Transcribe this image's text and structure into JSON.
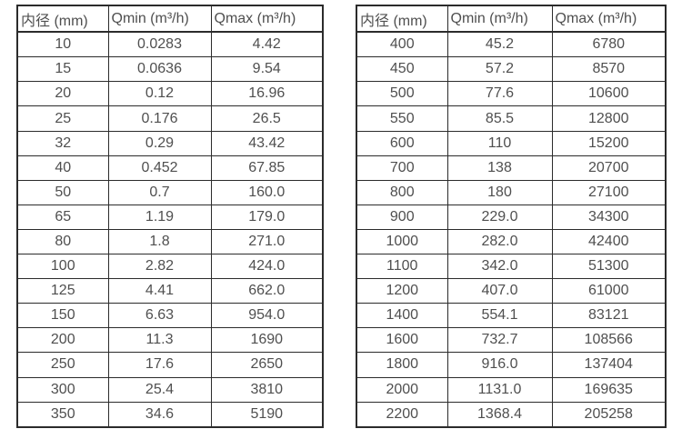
{
  "tables": [
    {
      "id": "flow-table-small-diameters",
      "headers": [
        "内径 (mm)",
        "Qmin (m³/h)",
        "Qmax (m³/h)"
      ],
      "rows": [
        [
          "10",
          "0.0283",
          "4.42"
        ],
        [
          "15",
          "0.0636",
          "9.54"
        ],
        [
          "20",
          "0.12",
          "16.96"
        ],
        [
          "25",
          "0.176",
          "26.5"
        ],
        [
          "32",
          "0.29",
          "43.42"
        ],
        [
          "40",
          "0.452",
          "67.85"
        ],
        [
          "50",
          "0.7",
          "160.0"
        ],
        [
          "65",
          "1.19",
          "179.0"
        ],
        [
          "80",
          "1.8",
          "271.0"
        ],
        [
          "100",
          "2.82",
          "424.0"
        ],
        [
          "125",
          "4.41",
          "662.0"
        ],
        [
          "150",
          "6.63",
          "954.0"
        ],
        [
          "200",
          "11.3",
          "1690"
        ],
        [
          "250",
          "17.6",
          "2650"
        ],
        [
          "300",
          "25.4",
          "3810"
        ],
        [
          "350",
          "34.6",
          "5190"
        ]
      ]
    },
    {
      "id": "flow-table-large-diameters",
      "headers": [
        "内径 (mm)",
        "Qmin (m³/h)",
        "Qmax (m³/h)"
      ],
      "rows": [
        [
          "400",
          "45.2",
          "6780"
        ],
        [
          "450",
          "57.2",
          "8570"
        ],
        [
          "500",
          "77.6",
          "10600"
        ],
        [
          "550",
          "85.5",
          "12800"
        ],
        [
          "600",
          "110",
          "15200"
        ],
        [
          "700",
          "138",
          "20700"
        ],
        [
          "800",
          "180",
          "27100"
        ],
        [
          "900",
          "229.0",
          "34300"
        ],
        [
          "1000",
          "282.0",
          "42400"
        ],
        [
          "1100",
          "342.0",
          "51300"
        ],
        [
          "1200",
          "407.0",
          "61000"
        ],
        [
          "1400",
          "554.1",
          "83121"
        ],
        [
          "1600",
          "732.7",
          "108566"
        ],
        [
          "1800",
          "916.0",
          "137404"
        ],
        [
          "2000",
          "1131.0",
          "169635"
        ],
        [
          "2200",
          "1368.4",
          "205258"
        ]
      ]
    }
  ],
  "colors": {
    "background": "#ffffff",
    "border": "#2b2b2b",
    "text": "#4f4f4f"
  }
}
